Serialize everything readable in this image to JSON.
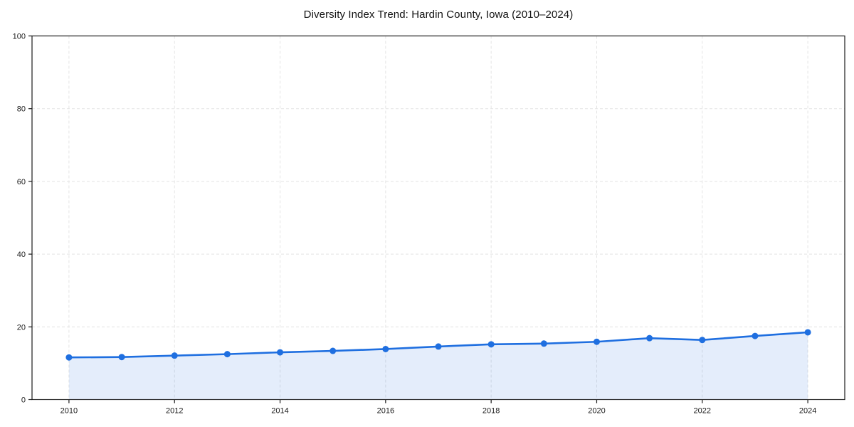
{
  "chart_data": {
    "type": "line",
    "title": "Diversity Index Trend: Hardin County, Iowa (2010–2024)",
    "xlabel": "",
    "ylabel": "",
    "x": [
      2010,
      2011,
      2012,
      2013,
      2014,
      2015,
      2016,
      2017,
      2018,
      2019,
      2020,
      2021,
      2022,
      2023,
      2024
    ],
    "series": [
      {
        "name": "Diversity Index",
        "values": [
          11.6,
          11.7,
          12.1,
          12.5,
          13.0,
          13.4,
          13.9,
          14.6,
          15.2,
          15.4,
          15.9,
          16.9,
          16.4,
          17.5,
          18.5
        ]
      }
    ],
    "xlim": [
      2009.3,
      2024.7
    ],
    "ylim": [
      0,
      100
    ],
    "xticks": [
      2010,
      2012,
      2014,
      2016,
      2018,
      2020,
      2022,
      2024
    ],
    "yticks": [
      0,
      20,
      40,
      60,
      80,
      100
    ],
    "grid": true,
    "grid_style": "dashed",
    "legend": false,
    "colors": {
      "line": "#1f6fe0",
      "marker": "#1f6fe0",
      "fill": "#1f6fe0",
      "fill_opacity": 0.12,
      "grid": "#e4e4e4",
      "spine": "#1a1a1a",
      "title": "#111111",
      "tick_label": "#1a1a1a",
      "background": "#ffffff"
    },
    "marker_radius": 4.5,
    "line_width": 2.6
  }
}
